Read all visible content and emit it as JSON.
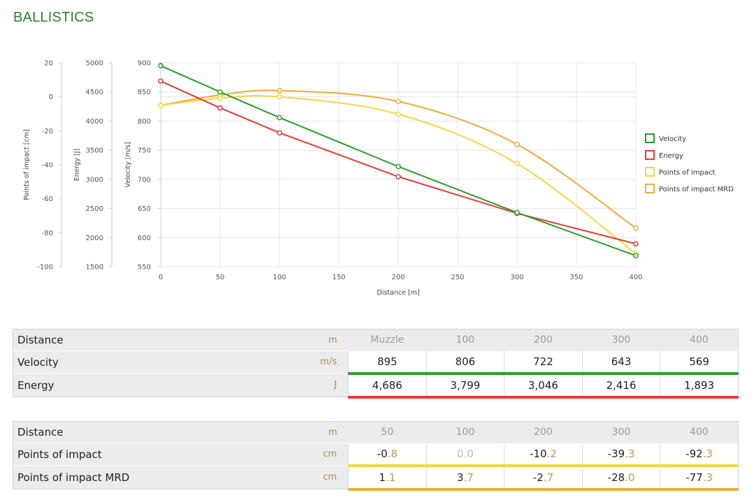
{
  "page": {
    "title": "BALLISTICS"
  },
  "chart_data": {
    "type": "line",
    "xlabel": "Distance [m]",
    "xlim": [
      0,
      400
    ],
    "xticks": [
      "0",
      "50",
      "100",
      "150",
      "200",
      "250",
      "300",
      "350",
      "400"
    ],
    "axes": [
      {
        "id": "poi",
        "label": "Points of impact [cm]",
        "min": -100,
        "max": 20,
        "ticks": [
          "20",
          "0",
          "-20",
          "-40",
          "-60",
          "-80",
          "-100"
        ]
      },
      {
        "id": "energy",
        "label": "Energy [J]",
        "min": 1500,
        "max": 5000,
        "ticks": [
          "5000",
          "4500",
          "4000",
          "3500",
          "3000",
          "2500",
          "2000",
          "1500"
        ]
      },
      {
        "id": "velocity",
        "label": "Velocity [m/s]",
        "min": 550,
        "max": 900,
        "ticks": [
          "900",
          "850",
          "800",
          "750",
          "700",
          "650",
          "600",
          "550"
        ]
      }
    ],
    "series": [
      {
        "name": "Velocity",
        "axis": "velocity",
        "color": "#2a9d2a",
        "x": [
          0,
          50,
          100,
          200,
          300,
          400
        ],
        "y": [
          895,
          850,
          806,
          722,
          643,
          569
        ]
      },
      {
        "name": "Energy",
        "axis": "energy",
        "color": "#e53935",
        "x": [
          0,
          50,
          100,
          200,
          300,
          400
        ],
        "y": [
          4686,
          4226,
          3799,
          3046,
          2416,
          1893
        ]
      },
      {
        "name": "Points of impact",
        "axis": "poi",
        "color": "#f4d83a",
        "x": [
          0,
          50,
          100,
          200,
          300,
          400
        ],
        "y": [
          -5,
          -0.8,
          0.0,
          -10.2,
          -39.3,
          -92.3
        ]
      },
      {
        "name": "Points of impact MRD",
        "axis": "poi",
        "color": "#f2a93b",
        "x": [
          0,
          50,
          100,
          200,
          300,
          400
        ],
        "y": [
          -5,
          1.1,
          3.7,
          -2.7,
          -28.0,
          -77.3
        ]
      }
    ],
    "grid": true,
    "legend": "right"
  },
  "table1": {
    "head": {
      "label": "Distance",
      "unit": "m",
      "cols": [
        "Muzzle",
        "100",
        "200",
        "300",
        "400"
      ]
    },
    "rows": [
      {
        "label": "Velocity",
        "unit": "m/s",
        "color": "#2a9d2a",
        "values": [
          "895",
          "806",
          "722",
          "643",
          "569"
        ]
      },
      {
        "label": "Energy",
        "unit": "J",
        "color": "#e53935",
        "values": [
          "4,686",
          "3,799",
          "3,046",
          "2,416",
          "1,893"
        ]
      }
    ]
  },
  "table2": {
    "head": {
      "label": "Distance",
      "unit": "m",
      "cols": [
        "50",
        "100",
        "200",
        "300",
        "400"
      ]
    },
    "rows": [
      {
        "label": "Points of impact",
        "unit": "cm",
        "color": "#f4d83a",
        "values": [
          "-0.8",
          "0.0",
          "-10.2",
          "-39.3",
          "-92.3"
        ]
      },
      {
        "label": "Points of impact MRD",
        "unit": "cm",
        "color": "#f2a93b",
        "values": [
          "1.1",
          "3.7",
          "-2.7",
          "-28.0",
          "-77.3"
        ]
      }
    ]
  }
}
